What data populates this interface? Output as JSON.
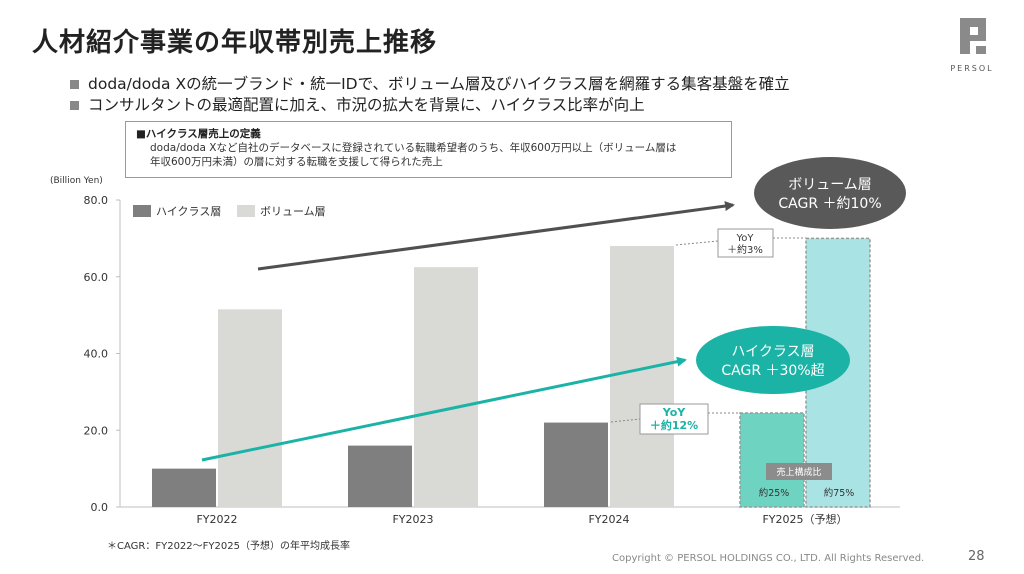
{
  "title": "人材紹介事業の年収帯別売上推移",
  "logo": {
    "text": "PERSOL",
    "icon": "persol-logo-icon"
  },
  "bullets": [
    "doda/doda Xの統一ブランド・統一IDで、ボリューム層及びハイクラス層を網羅する集客基盤を確立",
    "コンサルタントの最適配置に加え、市況の拡大を背景に、ハイクラス比率が向上"
  ],
  "definition": {
    "title": "■ハイクラス層売上の定義",
    "line1": "doda/doda Xなど自社のデータベースに登録されている転職希望者のうち、年収600万円以上（ボリューム層は",
    "line2": "年収600万円未満）の層に対する転職を支援して得られた売上"
  },
  "colors": {
    "highclass": "#7f7f7f",
    "volume": "#d9d9d6",
    "highclass_forecast": "#6fd3c2",
    "volume_forecast": "#a9e3e4",
    "teal": "#1ab3a6",
    "dark": "#505050"
  },
  "chart_data": {
    "type": "bar",
    "ylabel": "(Billion Yen)",
    "ylim": [
      0,
      80
    ],
    "yticks": [
      "0.0",
      "20.0",
      "40.0",
      "60.0",
      "80.0"
    ],
    "categories": [
      "FY2022",
      "FY2023",
      "FY2024",
      "FY2025（予想）"
    ],
    "series": [
      {
        "name": "ハイクラス層",
        "values": [
          10.0,
          16.0,
          22.0,
          24.5
        ]
      },
      {
        "name": "ボリューム層",
        "values": [
          51.5,
          62.5,
          68.0,
          70.0
        ]
      }
    ],
    "forecast_index": 3,
    "annotations": {
      "volume_cagr_line1": "ボリューム層",
      "volume_cagr_line2": "CAGR ＋約10%",
      "high_cagr_line1": "ハイクラス層",
      "high_cagr_line2": "CAGR ＋30%超",
      "yoy_volume_line1": "YoY",
      "yoy_volume_line2": "＋約3%",
      "yoy_high_line1": "YoY",
      "yoy_high_line2": "＋約12%",
      "composition_label": "売上構成比",
      "share_high": "約25%",
      "share_volume": "約75%"
    }
  },
  "footnote": "＊CAGR：FY2022〜FY2025（予想）の年平均成長率",
  "copyright": "Copyright © PERSOL HOLDINGS CO., LTD. All Rights Reserved.",
  "page_number": "28"
}
